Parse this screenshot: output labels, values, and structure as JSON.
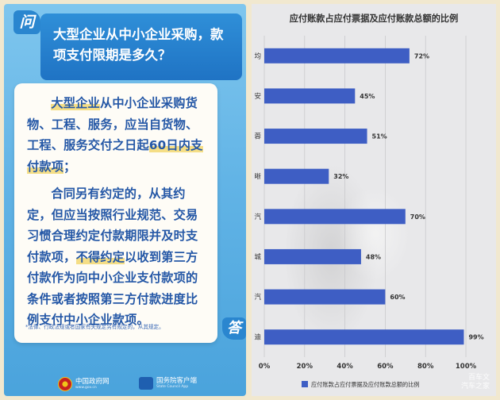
{
  "left": {
    "q_badge": "问",
    "question": "大型企业从中小企业采购，款项支付限期是多久？",
    "para1": {
      "seg1": "大型企业",
      "seg2": "从中小企业采购货物、工程、服务，应当自货物、工程、服务交付之日起",
      "seg3": "60日内支付款项",
      "seg4": "；"
    },
    "para2": {
      "seg1": "合同另有约定的，从其约定，但应当按照行业规范、交易习惯合理约定付款期限并及时支付款项，",
      "seg2": "不得约定",
      "seg3": "以收到第三方付款作为向中小企业支付款项的条件或者按照第三方付款进度比例支付中小企业款项。"
    },
    "footnote": "*法律、行政法规或者国家有关规定另有规定的，从其规定。",
    "a_badge": "答",
    "logos": [
      {
        "name": "中国政府网",
        "sub": "www.gov.cn"
      },
      {
        "name": "国务院客户端",
        "sub": "State Council App"
      }
    ],
    "colors": {
      "panel": "#62b4e6",
      "question_bg": "#1f73c4",
      "text": "#2457a6",
      "highlight": "#f5de86"
    }
  },
  "chart_data": {
    "type": "bar",
    "orientation": "horizontal",
    "title": "应付账款占应付票据及应付账款总额的比例",
    "categories": [
      "均",
      "安",
      "蓉",
      "晰",
      "汽",
      "城",
      "汽",
      "迪"
    ],
    "values": [
      72,
      45,
      51,
      32,
      70,
      48,
      60,
      99
    ],
    "value_labels": [
      "72%",
      "45%",
      "51%",
      "32%",
      "70%",
      "48%",
      "60%",
      "99%"
    ],
    "xticks": [
      "0%",
      "20%",
      "40%",
      "60%",
      "80%",
      "100%"
    ],
    "xlim": [
      0,
      100
    ],
    "legend": "应付账款占应付票据及应付账款总额的比例",
    "legend_position": "bottom",
    "grid": true,
    "bar_color": "#3e5ec4"
  },
  "watermark": [
    "百车文",
    "汽车之家"
  ]
}
